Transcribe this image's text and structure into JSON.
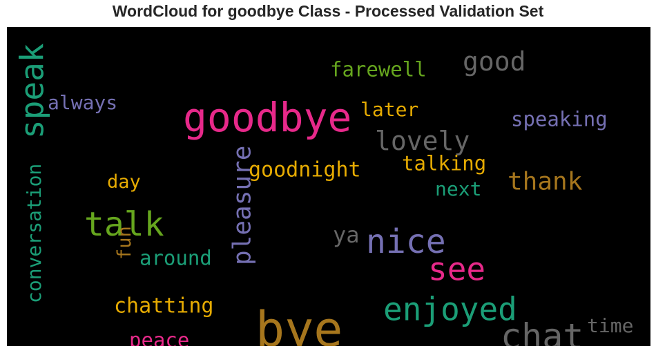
{
  "chart_data": {
    "type": "wordcloud",
    "title": "WordCloud for goodbye Class - Processed Validation Set",
    "words": [
      {
        "text": "bye",
        "color": "#a6761d"
      },
      {
        "text": "goodbye",
        "color": "#e7298a"
      },
      {
        "text": "chat",
        "color": "#666666"
      },
      {
        "text": "nice",
        "color": "#7570b3"
      },
      {
        "text": "talk",
        "color": "#66a61e"
      },
      {
        "text": "speak",
        "color": "#1b9e77"
      },
      {
        "text": "enjoyed",
        "color": "#1b9e77"
      },
      {
        "text": "see",
        "color": "#e7298a"
      },
      {
        "text": "pleasure",
        "color": "#7570b3"
      },
      {
        "text": "lovely",
        "color": "#666666"
      },
      {
        "text": "thank",
        "color": "#a6761d"
      },
      {
        "text": "good",
        "color": "#666666"
      },
      {
        "text": "conversation",
        "color": "#1b9e77"
      },
      {
        "text": "farewell",
        "color": "#66a61e"
      },
      {
        "text": "goodnight",
        "color": "#e6ab02"
      },
      {
        "text": "talking",
        "color": "#e6ab02"
      },
      {
        "text": "speaking",
        "color": "#7570b3"
      },
      {
        "text": "chatting",
        "color": "#e6ab02"
      },
      {
        "text": "later",
        "color": "#e6ab02"
      },
      {
        "text": "always",
        "color": "#7570b3"
      },
      {
        "text": "around",
        "color": "#1b9e77"
      },
      {
        "text": "peace",
        "color": "#e7298a"
      },
      {
        "text": "next",
        "color": "#1b9e77"
      },
      {
        "text": "time",
        "color": "#666666"
      },
      {
        "text": "day",
        "color": "#e6ab02"
      },
      {
        "text": "fun",
        "color": "#a6761d"
      },
      {
        "text": "ya",
        "color": "#666666"
      }
    ]
  }
}
